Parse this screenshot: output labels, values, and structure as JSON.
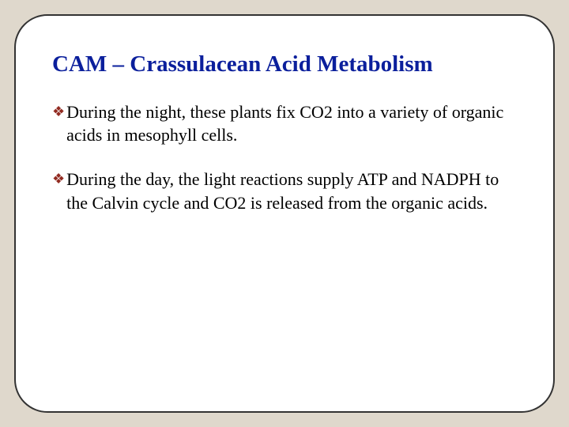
{
  "slide": {
    "background_color": "#dfd8cc",
    "card": {
      "background_color": "#ffffff",
      "border_color": "#333333",
      "border_width": 2,
      "border_radius": 42
    },
    "title": {
      "text": "CAM – Crassulacean Acid Metabolism",
      "color": "#0b1f9c",
      "font_size": 29,
      "font_weight": "bold"
    },
    "bullet_icon": {
      "glyph": "❖",
      "color": "#922b21",
      "font_size": 18
    },
    "bullets": [
      {
        "text": "During the night, these plants fix CO2 into a variety of organic acids in mesophyll cells."
      },
      {
        "text": "During the day, the light reactions supply ATP and NADPH to the Calvin cycle and CO2 is released from the organic acids."
      }
    ],
    "body_text": {
      "color": "#000000",
      "font_size": 22
    }
  }
}
